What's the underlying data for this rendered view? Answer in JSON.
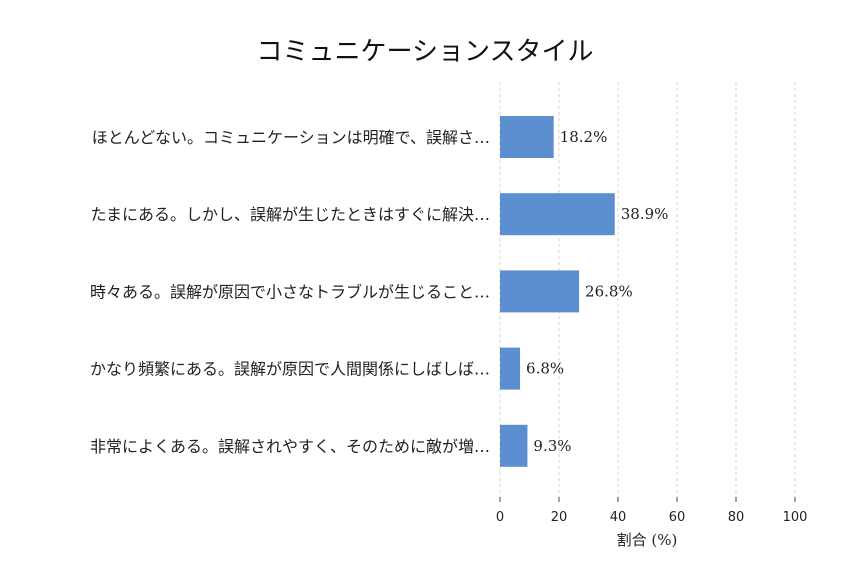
{
  "chart_data": {
    "type": "bar",
    "orientation": "horizontal",
    "title": "コミュニケーションスタイル",
    "xlabel": "割合 (%)",
    "ylabel": "",
    "xlim": [
      0,
      100
    ],
    "xticks": [
      0,
      20,
      40,
      60,
      80,
      100
    ],
    "grid": true,
    "bar_color": "#5b8fd0",
    "categories": [
      "ほとんどない。コミュニケーションは明確で、誤解さ…",
      "たまにある。しかし、誤解が生じたときはすぐに解決…",
      "時々ある。誤解が原因で小さなトラブルが生じること…",
      "かなり頻繁にある。誤解が原因で人間関係にしばしば…",
      "非常によくある。誤解されやすく、そのために敵が増…"
    ],
    "values": [
      18.2,
      38.9,
      26.8,
      6.8,
      9.3
    ],
    "value_labels": [
      "18.2%",
      "38.9%",
      "26.8%",
      "6.8%",
      "9.3%"
    ]
  }
}
